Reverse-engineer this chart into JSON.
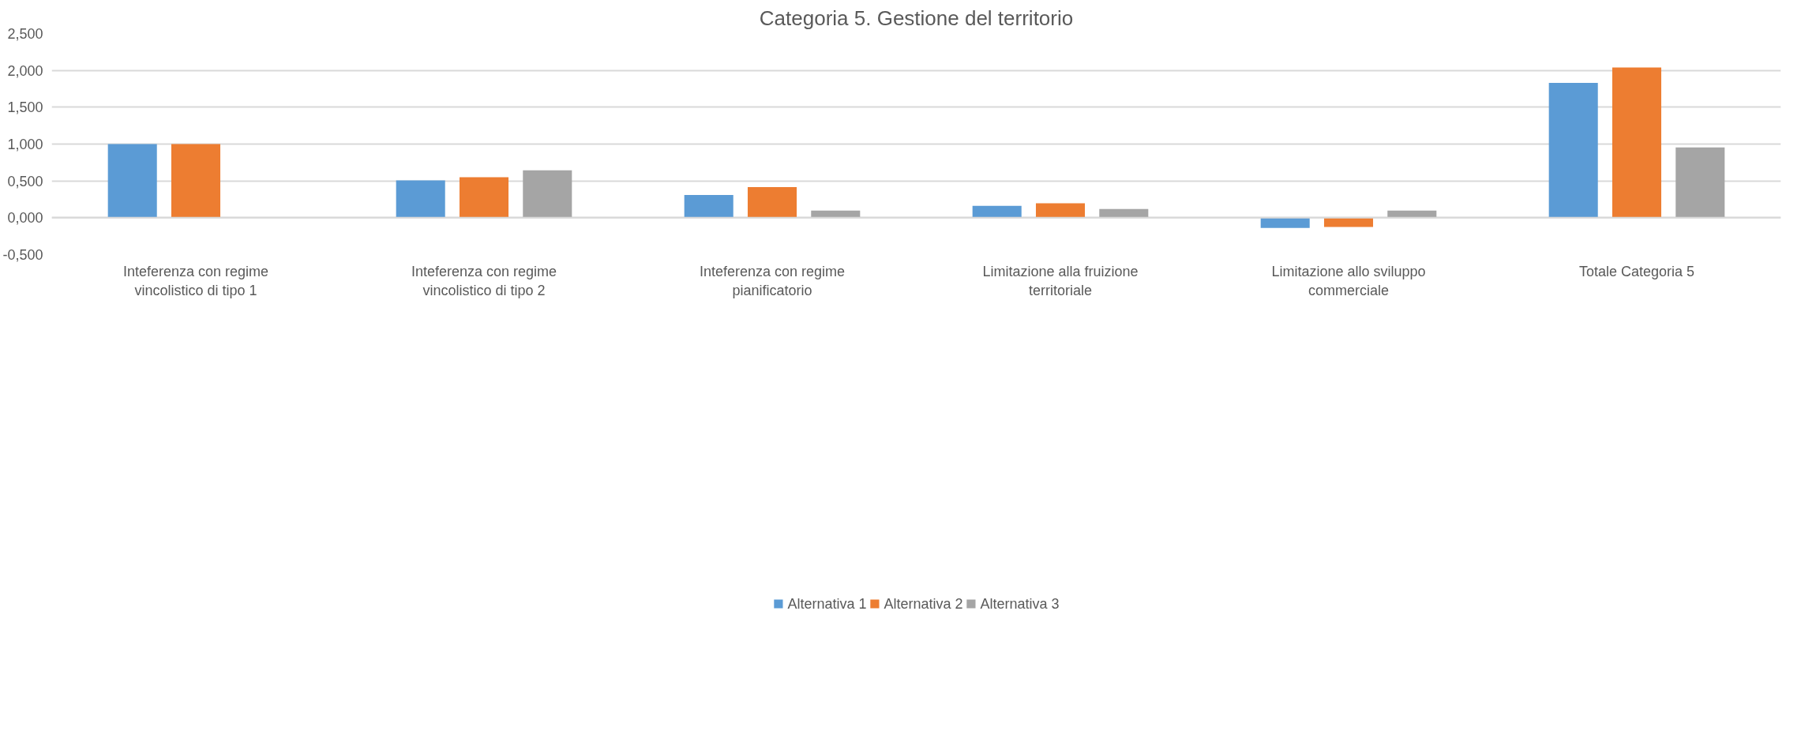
{
  "chart_data": {
    "type": "bar",
    "title": "Categoria 5. Gestione del territorio",
    "categories": [
      "Inteferenza con regime vincolistico di tipo 1",
      "Inteferenza con regime vincolistico di tipo 2",
      "Inteferenza con regime pianificatorio",
      "Limitazione alla fruizione territoriale",
      "Limitazione allo sviluppo commerciale",
      "Totale Categoria 5"
    ],
    "series": [
      {
        "name": "Alternativa 1",
        "color": "#5b9bd5",
        "values": [
          1.0,
          0.508,
          0.308,
          0.161,
          -0.138,
          1.83
        ]
      },
      {
        "name": "Alternativa 2",
        "color": "#ed7d31",
        "values": [
          1.0,
          0.551,
          0.417,
          0.196,
          -0.125,
          2.04
        ]
      },
      {
        "name": "Alternativa 3",
        "color": "#a5a5a5",
        "values": [
          0,
          0.645,
          0.097,
          0.119,
          0.096,
          0.955
        ]
      }
    ],
    "ylim": [
      -0.5,
      2.5
    ],
    "yticks": [
      {
        "value": -0.5,
        "label": "-0,500"
      },
      {
        "value": 0,
        "label": "0,000"
      },
      {
        "value": 0.5,
        "label": "0,500"
      },
      {
        "value": 1,
        "label": "1,000"
      },
      {
        "value": 1.5,
        "label": "1,500"
      },
      {
        "value": 2,
        "label": "2,000"
      },
      {
        "value": 2.5,
        "label": "2,500"
      }
    ],
    "grid": "y",
    "legend": "bottom"
  }
}
